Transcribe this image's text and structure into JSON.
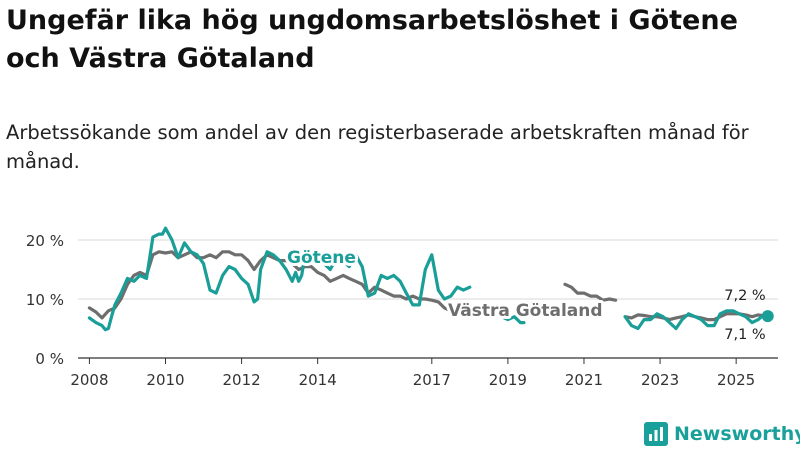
{
  "title": "Ungefär lika hög ungdomsarbetslöshet i Götene och Västra Götaland",
  "subtitle": "Arbetssökande som andel av den registerbaserade arbetskraften månad för månad.",
  "logo": {
    "text": "Newsworthy",
    "icon": "bar-chart-logo-icon"
  },
  "colors": {
    "gotene": "#1a9e98",
    "vg": "#6e6e6e",
    "grid": "#d9d9d9",
    "axis": "#333333",
    "brand": "#1aa09a"
  },
  "chart_data": {
    "type": "line",
    "title": "Ungefär lika hög ungdomsarbetslöshet i Götene och Västra Götaland",
    "xlabel": "",
    "ylabel": "",
    "xlim": [
      2007.7,
      2026.1
    ],
    "ylim": [
      0,
      22
    ],
    "yticks": [
      0,
      10,
      20
    ],
    "ytick_labels": [
      "0 %",
      "10 %",
      "20 %"
    ],
    "xticks": [
      2008,
      2010,
      2012,
      2014,
      2017,
      2019,
      2021,
      2023,
      2025
    ],
    "xtick_labels": [
      "2008",
      "2010",
      "2012",
      "2014",
      "2017",
      "2019",
      "2021",
      "2023",
      "2025"
    ],
    "grid": true,
    "series": [
      {
        "name": "Götene",
        "label": "Götene",
        "last_value_label": "7,1 %",
        "segments": [
          {
            "x": [
              2008.0,
              2008.17,
              2008.33,
              2008.42,
              2008.5,
              2008.58,
              2008.67,
              2008.83,
              2009.0,
              2009.17,
              2009.33,
              2009.5,
              2009.67,
              2009.83,
              2009.92,
              2010.0,
              2010.17,
              2010.33,
              2010.5,
              2010.67,
              2010.83,
              2011.0,
              2011.17,
              2011.33,
              2011.5,
              2011.67,
              2011.83,
              2012.0,
              2012.17,
              2012.33,
              2012.42,
              2012.5,
              2012.67,
              2012.83,
              2013.0,
              2013.17,
              2013.33,
              2013.42,
              2013.5,
              2013.58,
              2013.67,
              2013.83,
              2014.0,
              2014.17,
              2014.33,
              2014.5,
              2014.67,
              2014.83,
              2015.0,
              2015.17,
              2015.33,
              2015.5,
              2015.67,
              2015.83,
              2016.0,
              2016.17,
              2016.33,
              2016.5,
              2016.67,
              2016.83,
              2017.0,
              2017.17,
              2017.33,
              2017.5,
              2017.67,
              2017.83,
              2018.0
            ],
            "y": [
              6.8,
              6.0,
              5.5,
              4.8,
              5.0,
              7.0,
              9.0,
              11.0,
              13.5,
              13.0,
              14.0,
              13.5,
              20.5,
              21.0,
              21.0,
              22.0,
              20.0,
              17.0,
              19.5,
              18.0,
              17.5,
              16.0,
              11.5,
              11.0,
              14.0,
              15.5,
              15.0,
              13.5,
              12.5,
              9.5,
              10.0,
              15.0,
              18.0,
              17.5,
              16.5,
              15.0,
              13.0,
              14.5,
              13.0,
              14.0,
              17.5,
              16.5,
              17.0,
              16.0,
              15.0,
              17.0,
              16.5,
              15.5,
              17.5,
              15.5,
              10.5,
              11.0,
              14.0,
              13.5,
              14.0,
              13.0,
              11.0,
              9.0,
              9.0,
              15.0,
              17.5,
              11.5,
              10.0,
              10.5,
              12.0,
              11.5,
              12.0
            ]
          },
          {
            "x": [
              2018.83,
              2019.0,
              2019.17,
              2019.33,
              2019.42
            ],
            "y": [
              7.0,
              6.5,
              7.0,
              6.0,
              6.0
            ]
          },
          {
            "x": [
              2022.08,
              2022.25,
              2022.42,
              2022.58,
              2022.75,
              2022.92,
              2023.08,
              2023.25,
              2023.42,
              2023.58,
              2023.75,
              2023.92,
              2024.08,
              2024.25,
              2024.42,
              2024.58,
              2024.75,
              2024.92,
              2025.08,
              2025.25,
              2025.42,
              2025.58,
              2025.67,
              2025.83
            ],
            "y": [
              7.0,
              5.5,
              5.0,
              6.5,
              6.5,
              7.5,
              7.0,
              6.0,
              5.0,
              6.5,
              7.5,
              7.0,
              6.5,
              5.5,
              5.5,
              7.5,
              8.0,
              8.0,
              7.5,
              7.0,
              6.0,
              6.5,
              7.0,
              7.1
            ]
          }
        ]
      },
      {
        "name": "Västra Götaland",
        "label": "Västra Götaland",
        "last_value_label": "7,2 %",
        "segments": [
          {
            "x": [
              2008.0,
              2008.17,
              2008.33,
              2008.5,
              2008.67,
              2008.83,
              2009.0,
              2009.17,
              2009.33,
              2009.5,
              2009.67,
              2009.83,
              2010.0,
              2010.17,
              2010.33,
              2010.5,
              2010.67,
              2010.83,
              2011.0,
              2011.17,
              2011.33,
              2011.5,
              2011.67,
              2011.83,
              2012.0,
              2012.17,
              2012.33,
              2012.5,
              2012.67,
              2012.83,
              2013.0,
              2013.17,
              2013.33,
              2013.5,
              2013.67,
              2013.83,
              2014.0,
              2014.17,
              2014.33,
              2014.5,
              2014.67,
              2014.83,
              2015.0,
              2015.17,
              2015.33,
              2015.5,
              2015.67,
              2015.83,
              2016.0,
              2016.17,
              2016.33,
              2016.5,
              2016.67,
              2016.83,
              2017.0,
              2017.17,
              2017.33,
              2017.5
            ],
            "y": [
              8.5,
              7.8,
              6.8,
              8.0,
              8.5,
              10.0,
              12.5,
              14.0,
              14.5,
              14.0,
              17.5,
              18.0,
              17.8,
              18.0,
              17.0,
              17.5,
              18.0,
              17.0,
              17.0,
              17.5,
              17.0,
              18.0,
              18.0,
              17.5,
              17.5,
              16.5,
              15.0,
              16.5,
              17.5,
              17.0,
              16.5,
              16.5,
              16.0,
              15.0,
              15.5,
              15.5,
              14.5,
              14.0,
              13.0,
              13.5,
              14.0,
              13.5,
              13.0,
              12.5,
              11.0,
              12.0,
              11.5,
              11.0,
              10.5,
              10.5,
              10.0,
              10.5,
              10.0,
              10.0,
              9.8,
              9.5,
              8.5,
              8.0
            ]
          },
          {
            "x": [
              2020.5,
              2020.67,
              2020.83,
              2021.0,
              2021.17,
              2021.33,
              2021.5,
              2021.67,
              2021.83
            ],
            "y": [
              12.5,
              12.0,
              11.0,
              11.0,
              10.5,
              10.5,
              9.8,
              10.0,
              9.8
            ]
          },
          {
            "x": [
              2022.08,
              2022.25,
              2022.42,
              2022.58,
              2022.75,
              2022.92,
              2023.08,
              2023.25,
              2023.42,
              2023.58,
              2023.75,
              2023.92,
              2024.08,
              2024.25,
              2024.42,
              2024.58,
              2024.75,
              2024.92,
              2025.08,
              2025.25,
              2025.42,
              2025.58,
              2025.67,
              2025.83
            ],
            "y": [
              7.0,
              6.8,
              7.3,
              7.2,
              7.0,
              7.0,
              6.8,
              6.5,
              6.8,
              7.0,
              7.3,
              7.0,
              6.8,
              6.5,
              6.5,
              7.0,
              7.5,
              7.5,
              7.5,
              7.3,
              7.0,
              7.3,
              7.2,
              7.2
            ]
          }
        ]
      }
    ]
  }
}
